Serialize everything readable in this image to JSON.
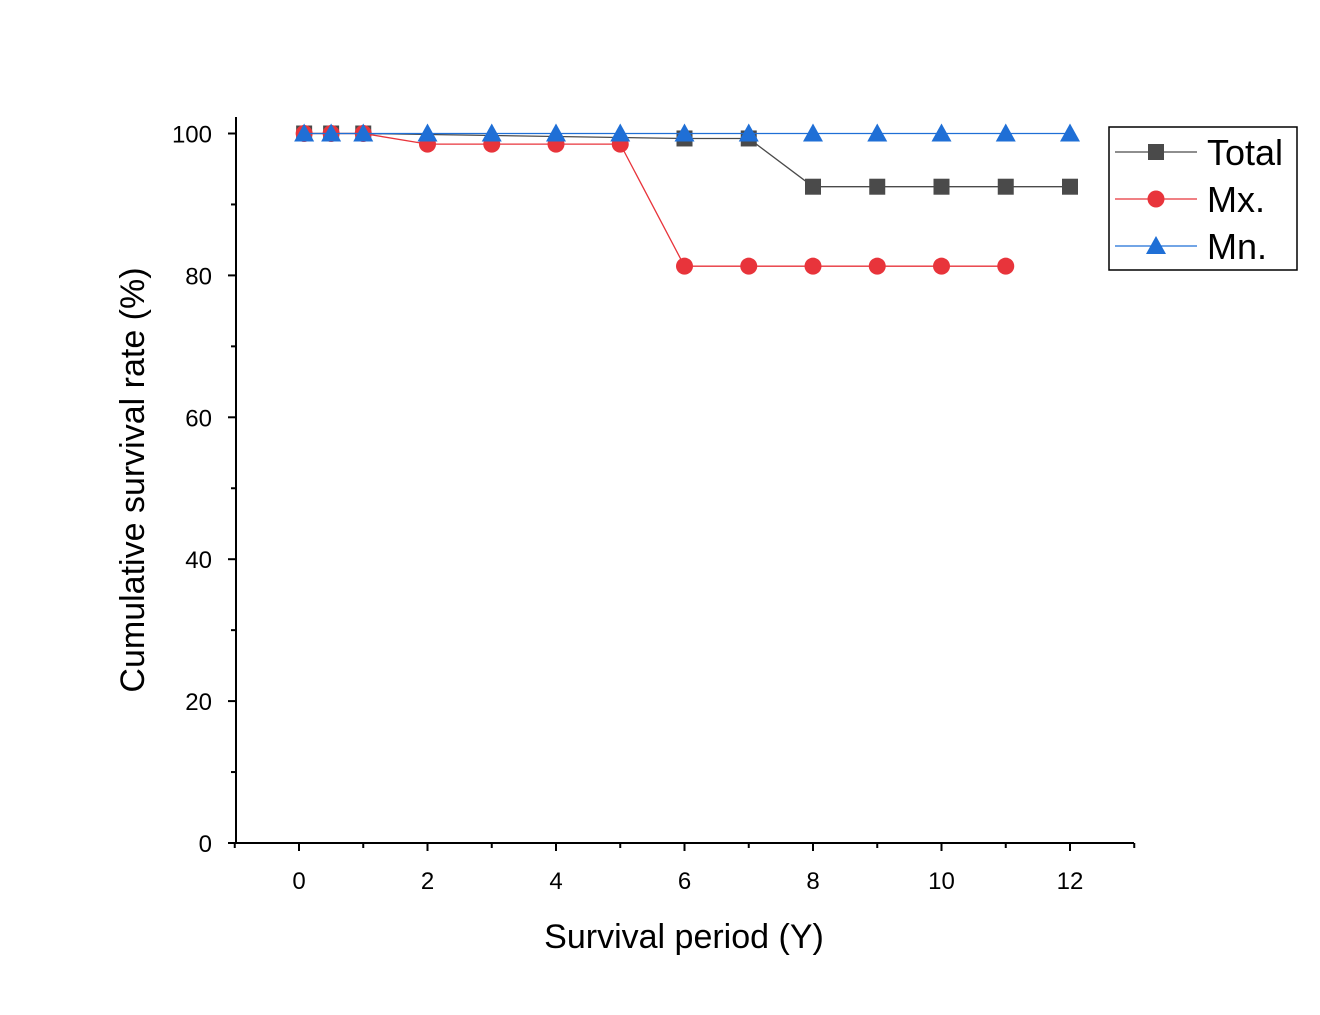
{
  "chart_data": {
    "type": "line",
    "xlabel": "Survival period (Y)",
    "ylabel": "Cumulative survival rate (%)",
    "xlim": [
      -1,
      13
    ],
    "ylim": [
      0,
      102.5
    ],
    "x_ticks": [
      0,
      2,
      4,
      6,
      8,
      10,
      12
    ],
    "y_ticks": [
      0,
      20,
      40,
      60,
      80,
      100
    ],
    "legend_position": "top-right",
    "series": [
      {
        "name": "Total",
        "color": "#4a4a4a",
        "marker": "square",
        "x": [
          0.08,
          0.5,
          1,
          6,
          7,
          8,
          9,
          10,
          11,
          12
        ],
        "y": [
          100,
          100,
          100,
          99.3,
          99.3,
          92.5,
          92.5,
          92.5,
          92.5,
          92.5
        ]
      },
      {
        "name": "Mx.",
        "color": "#e8343b",
        "marker": "circle",
        "x": [
          0.08,
          0.5,
          1,
          2,
          3,
          4,
          5,
          6,
          7,
          8,
          9,
          10,
          11
        ],
        "y": [
          100,
          100,
          100,
          98.5,
          98.5,
          98.5,
          98.5,
          81.3,
          81.3,
          81.3,
          81.3,
          81.3,
          81.3
        ]
      },
      {
        "name": "Mn.",
        "color": "#1f6fd6",
        "marker": "triangle",
        "x": [
          0.08,
          0.5,
          1,
          2,
          3,
          4,
          5,
          6,
          7,
          8,
          9,
          10,
          11,
          12
        ],
        "y": [
          100,
          100,
          100,
          100,
          100,
          100,
          100,
          100,
          100,
          100,
          100,
          100,
          100,
          100
        ]
      }
    ]
  }
}
